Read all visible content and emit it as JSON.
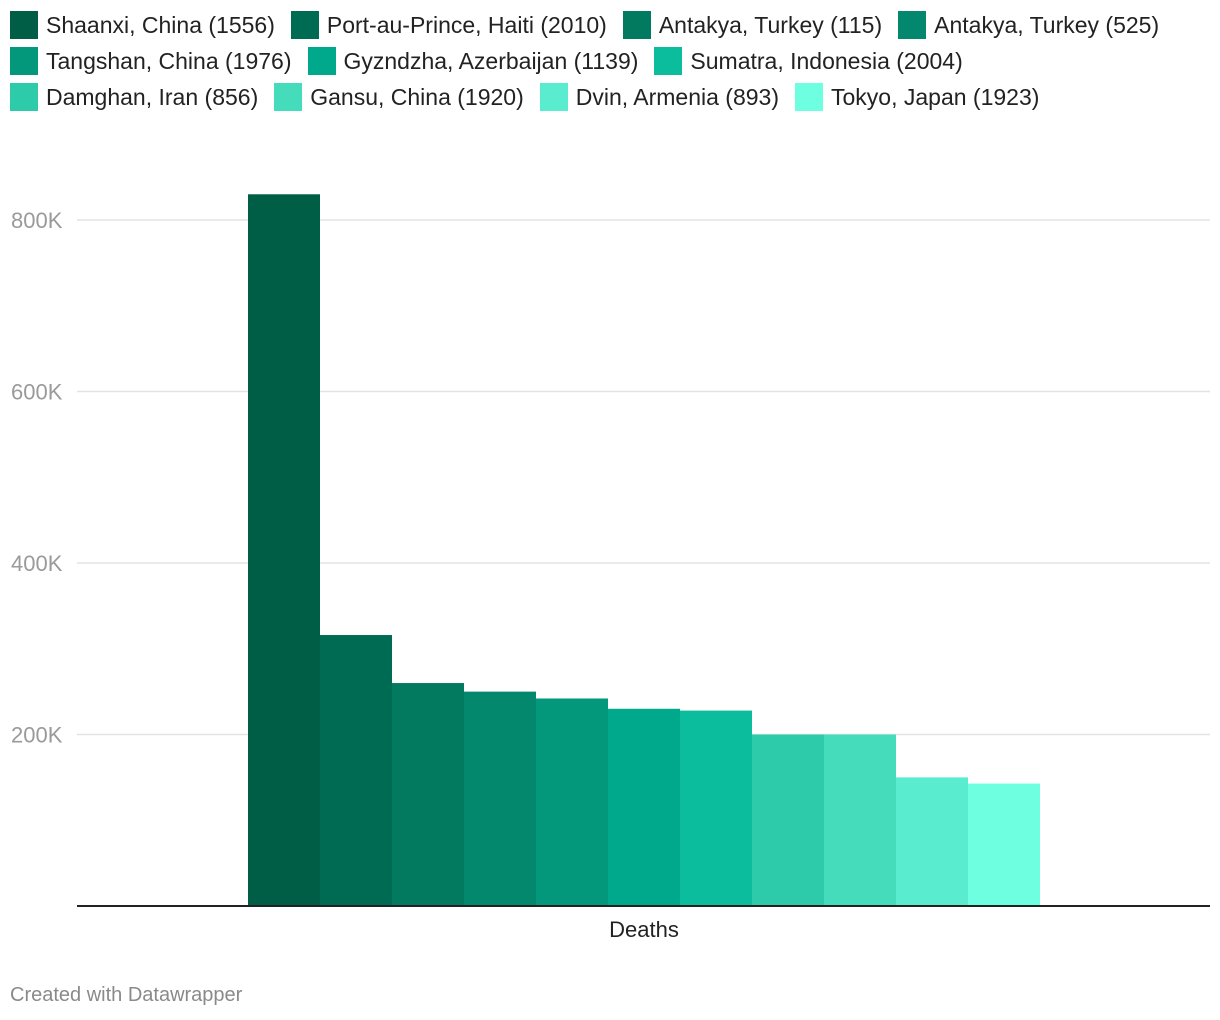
{
  "chart_data": {
    "type": "bar",
    "categories": [
      "Deaths"
    ],
    "series": [
      {
        "name": "Shaanxi, China (1556)",
        "values": [
          830000
        ],
        "color": "#005e46"
      },
      {
        "name": "Port-au-Prince, Haiti (2010)",
        "values": [
          316000
        ],
        "color": "#006b53"
      },
      {
        "name": "Antakya, Turkey (115)",
        "values": [
          260000
        ],
        "color": "#027a60"
      },
      {
        "name": "Antakya, Turkey (525)",
        "values": [
          250000
        ],
        "color": "#04886d"
      },
      {
        "name": "Tangshan, China (1976)",
        "values": [
          242000
        ],
        "color": "#03977c"
      },
      {
        "name": "Gyzndzha, Azerbaijan (1139)",
        "values": [
          230000
        ],
        "color": "#00a98b"
      },
      {
        "name": "Sumatra, Indonesia (2004)",
        "values": [
          227898
        ],
        "color": "#0bbc9d"
      },
      {
        "name": "Damghan, Iran (856)",
        "values": [
          200000
        ],
        "color": "#2ecbab"
      },
      {
        "name": "Gansu, China (1920)",
        "values": [
          200000
        ],
        "color": "#45dcbc"
      },
      {
        "name": "Dvin, Armenia (893)",
        "values": [
          150000
        ],
        "color": "#59ecce"
      },
      {
        "name": "Tokyo, Japan (1923)",
        "values": [
          142800
        ],
        "color": "#6effe1"
      }
    ],
    "y_ticks": [
      {
        "value": 200000,
        "label": "200K"
      },
      {
        "value": 400000,
        "label": "400K"
      },
      {
        "value": 600000,
        "label": "600K"
      },
      {
        "value": 800000,
        "label": "800K"
      }
    ],
    "ylim": [
      0,
      830000
    ],
    "xlabel": "Deaths",
    "grid": true,
    "legend_position": "top"
  },
  "footer": {
    "credit": "Created with Datawrapper"
  }
}
